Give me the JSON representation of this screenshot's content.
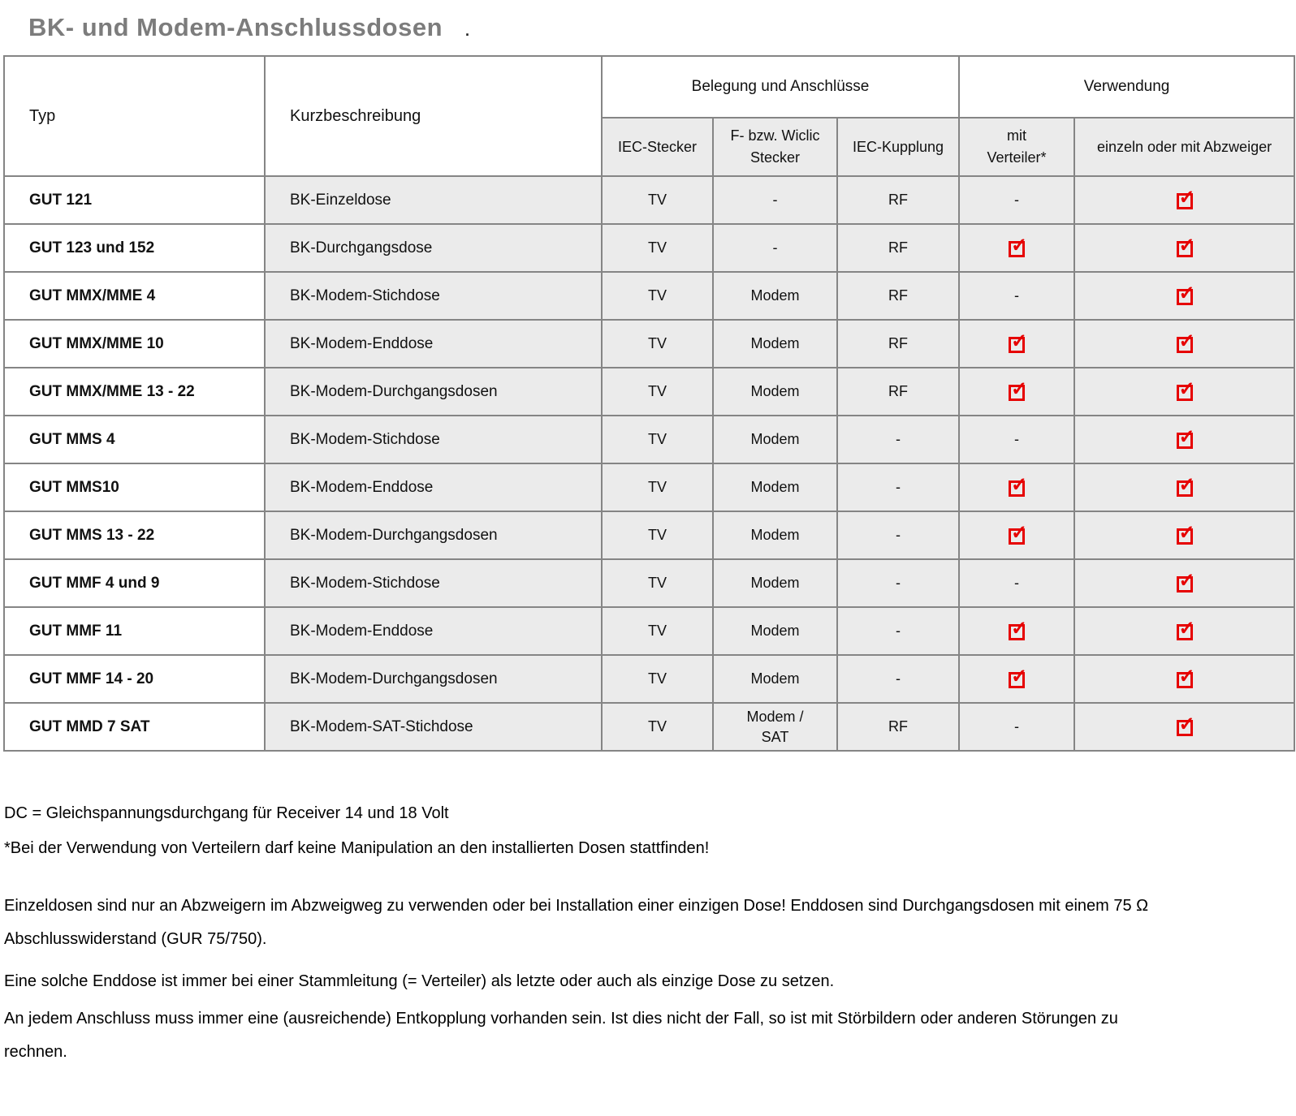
{
  "title": "BK- und Modem-Anschlussdosen",
  "title_dot": ".",
  "colors": {
    "check_red": "#e60000",
    "cell_gray": "#ebebeb",
    "border_gray": "#858585",
    "title_gray": "#7c7c7c"
  },
  "table": {
    "check_glyph": "✓",
    "col_headers": {
      "typ": "Typ",
      "kurzbeschreibung": "Kurzbeschreibung",
      "belegung_group": "Belegung und Anschlüsse",
      "verwendung_group": "Verwendung",
      "iec_stecker": "IEC-Stecker",
      "f_wiclic_stecker": "F- bzw. Wiclic\nStecker",
      "iec_kupplung": "IEC-Kupplung",
      "mit_verteiler": "mit\nVerteiler*",
      "einzeln_oder_mit_abzweiger": "einzeln oder mit Abzweiger"
    },
    "rows": [
      {
        "typ": "GUT 121",
        "kurzbeschreibung": "BK-Einzeldose",
        "iec_stecker": "TV",
        "f_stecker": "-",
        "iec_kupplung": "RF",
        "mit_verteiler": "-",
        "einzeln_oder_mit_abzweiger": "checked"
      },
      {
        "typ": "GUT 123 und 152",
        "kurzbeschreibung": "BK-Durchgangsdose",
        "iec_stecker": "TV",
        "f_stecker": "-",
        "iec_kupplung": "RF",
        "mit_verteiler": "checked",
        "einzeln_oder_mit_abzweiger": "checked"
      },
      {
        "typ": "GUT MMX/MME 4",
        "kurzbeschreibung": "BK-Modem-Stichdose",
        "iec_stecker": "TV",
        "f_stecker": "Modem",
        "iec_kupplung": "RF",
        "mit_verteiler": "-",
        "einzeln_oder_mit_abzweiger": "checked"
      },
      {
        "typ": "GUT MMX/MME 10",
        "kurzbeschreibung": "BK-Modem-Enddose",
        "iec_stecker": "TV",
        "f_stecker": "Modem",
        "iec_kupplung": "RF",
        "mit_verteiler": "checked",
        "einzeln_oder_mit_abzweiger": "checked"
      },
      {
        "typ": "GUT MMX/MME 13 - 22",
        "kurzbeschreibung": "BK-Modem-Durchgangsdosen",
        "iec_stecker": "TV",
        "f_stecker": "Modem",
        "iec_kupplung": "RF",
        "mit_verteiler": "checked",
        "einzeln_oder_mit_abzweiger": "checked"
      },
      {
        "typ": "GUT MMS 4",
        "kurzbeschreibung": "BK-Modem-Stichdose",
        "iec_stecker": "TV",
        "f_stecker": "Modem",
        "iec_kupplung": "-",
        "mit_verteiler": "-",
        "einzeln_oder_mit_abzweiger": "checked"
      },
      {
        "typ": "GUT MMS10",
        "kurzbeschreibung": "BK-Modem-Enddose",
        "iec_stecker": "TV",
        "f_stecker": "Modem",
        "iec_kupplung": "-",
        "mit_verteiler": "checked",
        "einzeln_oder_mit_abzweiger": "checked"
      },
      {
        "typ": "GUT MMS 13 - 22",
        "kurzbeschreibung": "BK-Modem-Durchgangsdosen",
        "iec_stecker": "TV",
        "f_stecker": "Modem",
        "iec_kupplung": "-",
        "mit_verteiler": "checked",
        "einzeln_oder_mit_abzweiger": "checked"
      },
      {
        "typ": "GUT MMF 4 und 9",
        "kurzbeschreibung": "BK-Modem-Stichdose",
        "iec_stecker": "TV",
        "f_stecker": "Modem",
        "iec_kupplung": "-",
        "mit_verteiler": "-",
        "einzeln_oder_mit_abzweiger": "checked"
      },
      {
        "typ": "GUT MMF 11",
        "kurzbeschreibung": "BK-Modem-Enddose",
        "iec_stecker": "TV",
        "f_stecker": "Modem",
        "iec_kupplung": "-",
        "mit_verteiler": "checked",
        "einzeln_oder_mit_abzweiger": "checked"
      },
      {
        "typ": "GUT MMF 14 - 20",
        "kurzbeschreibung": "BK-Modem-Durchgangsdosen",
        "iec_stecker": "TV",
        "f_stecker": "Modem",
        "iec_kupplung": "-",
        "mit_verteiler": "checked",
        "einzeln_oder_mit_abzweiger": "checked"
      },
      {
        "typ": "GUT MMD 7 SAT",
        "kurzbeschreibung": "BK-Modem-SAT-Stichdose",
        "iec_stecker": "TV",
        "f_stecker": "Modem /\nSAT",
        "iec_kupplung": "RF",
        "mit_verteiler": "-",
        "einzeln_oder_mit_abzweiger": "checked"
      }
    ]
  },
  "notes": [
    "DC = Gleichspannungsdurchgang für Receiver 14 und 18 Volt",
    "*Bei der Verwendung von Verteilern darf keine Manipulation an den installierten Dosen stattfinden!",
    "Einzeldosen sind nur an Abzweigern im Abzweigweg zu verwenden oder bei Installation einer einzigen Dose! Enddosen sind Durchgangsdosen mit einem 75 Ω Abschlusswiderstand (GUR 75/750).",
    "Eine solche Enddose ist immer bei einer Stammleitung (= Verteiler) als letzte  oder auch als einzige Dose zu setzen.",
    "An jedem Anschluss muss immer eine (ausreichende) Entkopplung vorhanden sein. Ist dies nicht der Fall, so ist mit Störbildern oder anderen Störungen zu rechnen."
  ]
}
